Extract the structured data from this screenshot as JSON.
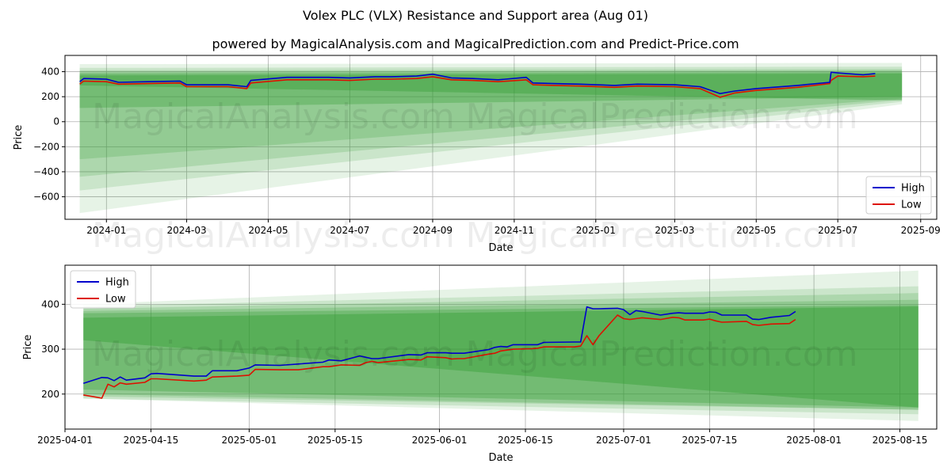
{
  "title": "Volex PLC (VLX) Resistance and Support area (Aug 01)",
  "subtitle": "powered by MagicalAnalysis.com and MagicalPrediction.com and Predict-Price.com",
  "watermark": [
    "MagicalAnalysis.com",
    "MagicalPrediction.com"
  ],
  "colors": {
    "high": "#0000cc",
    "low": "#dd1100",
    "band": "#2e9a2e",
    "grid": "#b0b0b0"
  },
  "chart_data": [
    {
      "type": "line",
      "xlabel": "Date",
      "ylabel": "Price",
      "xlim": [
        "2023-12-01",
        "2025-09-13"
      ],
      "ylim": [
        -780,
        530
      ],
      "yticks": [
        -600,
        -400,
        -200,
        0,
        200,
        400
      ],
      "ytick_labels": [
        "−600",
        "−400",
        "−200",
        "0",
        "200",
        "400"
      ],
      "xticks": [
        "2024-01-01",
        "2024-03-01",
        "2024-05-01",
        "2024-07-01",
        "2024-09-01",
        "2024-11-01",
        "2025-01-01",
        "2025-03-01",
        "2025-05-01",
        "2025-07-01",
        "2025-09-01"
      ],
      "xtick_labels": [
        "2024-01",
        "2024-03",
        "2024-05",
        "2024-07",
        "2024-09",
        "2024-11",
        "2025-01",
        "2025-03",
        "2025-05",
        "2025-07",
        "2025-09"
      ],
      "grid": true,
      "legend": "lower right",
      "bands": [
        {
          "x0": "2023-12-12",
          "x1": "2025-08-18",
          "top0": 460,
          "top1": 470,
          "bot0": -730,
          "bot1": 140,
          "opacity": 0.12
        },
        {
          "x0": "2023-12-12",
          "x1": "2025-08-18",
          "top0": 430,
          "top1": 440,
          "bot0": -550,
          "bot1": 160,
          "opacity": 0.15
        },
        {
          "x0": "2023-12-12",
          "x1": "2025-08-18",
          "top0": 410,
          "top1": 420,
          "bot0": -440,
          "bot1": 175,
          "opacity": 0.18
        },
        {
          "x0": "2023-12-12",
          "x1": "2025-08-18",
          "top0": 395,
          "top1": 410,
          "bot0": -300,
          "bot1": 185,
          "opacity": 0.2
        },
        {
          "x0": "2023-12-12",
          "x1": "2025-08-18",
          "top0": 385,
          "top1": 395,
          "bot0": 110,
          "bot1": 200,
          "opacity": 0.3
        },
        {
          "x0": "2023-12-12",
          "x1": "2025-08-18",
          "top0": 370,
          "top1": 385,
          "bot0": 290,
          "bot1": 170,
          "opacity": 0.35
        }
      ],
      "series": [
        {
          "name": "High",
          "x": [
            "2023-12-12",
            "2023-12-15",
            "2024-01-01",
            "2024-01-10",
            "2024-02-01",
            "2024-02-25",
            "2024-03-01",
            "2024-04-01",
            "2024-04-15",
            "2024-04-18",
            "2024-05-15",
            "2024-06-15",
            "2024-07-01",
            "2024-07-20",
            "2024-08-01",
            "2024-08-20",
            "2024-09-01",
            "2024-09-15",
            "2024-10-01",
            "2024-10-20",
            "2024-11-10",
            "2024-11-15",
            "2024-12-01",
            "2024-12-20",
            "2025-01-15",
            "2025-02-01",
            "2025-03-01",
            "2025-03-20",
            "2025-04-04",
            "2025-04-15",
            "2025-05-01",
            "2025-06-01",
            "2025-06-25",
            "2025-06-26",
            "2025-07-01",
            "2025-07-20",
            "2025-07-29"
          ],
          "values": [
            320,
            345,
            340,
            315,
            320,
            325,
            295,
            295,
            280,
            330,
            355,
            355,
            350,
            360,
            360,
            365,
            380,
            350,
            345,
            335,
            355,
            310,
            305,
            300,
            290,
            300,
            295,
            280,
            225,
            245,
            265,
            290,
            315,
            395,
            390,
            375,
            385
          ]
        },
        {
          "name": "Low",
          "x": [
            "2023-12-12",
            "2023-12-15",
            "2024-01-01",
            "2024-01-10",
            "2024-02-01",
            "2024-02-25",
            "2024-03-01",
            "2024-04-01",
            "2024-04-15",
            "2024-04-18",
            "2024-05-15",
            "2024-06-15",
            "2024-07-01",
            "2024-07-20",
            "2024-08-01",
            "2024-08-20",
            "2024-09-01",
            "2024-09-15",
            "2024-10-01",
            "2024-10-20",
            "2024-11-10",
            "2024-11-15",
            "2024-12-01",
            "2024-12-20",
            "2025-01-15",
            "2025-02-01",
            "2025-03-01",
            "2025-03-20",
            "2025-04-04",
            "2025-04-15",
            "2025-05-01",
            "2025-06-01",
            "2025-06-25",
            "2025-06-26",
            "2025-07-01",
            "2025-07-20",
            "2025-07-29"
          ],
          "values": [
            300,
            325,
            320,
            300,
            305,
            310,
            280,
            280,
            265,
            310,
            335,
            335,
            330,
            340,
            340,
            345,
            360,
            335,
            330,
            320,
            335,
            295,
            290,
            285,
            275,
            285,
            280,
            265,
            195,
            230,
            250,
            275,
            305,
            330,
            365,
            360,
            365
          ]
        }
      ]
    },
    {
      "type": "line",
      "xlabel": "Date",
      "ylabel": "Price",
      "xlim": [
        "2025-04-01",
        "2025-08-21"
      ],
      "ylim": [
        122,
        487
      ],
      "yticks": [
        200,
        300,
        400
      ],
      "ytick_labels": [
        "200",
        "300",
        "400"
      ],
      "xticks": [
        "2025-04-01",
        "2025-04-15",
        "2025-05-01",
        "2025-05-15",
        "2025-06-01",
        "2025-06-15",
        "2025-07-01",
        "2025-07-15",
        "2025-08-01",
        "2025-08-15"
      ],
      "xtick_labels": [
        "2025-04-01",
        "2025-04-15",
        "2025-05-01",
        "2025-05-15",
        "2025-06-01",
        "2025-06-15",
        "2025-07-01",
        "2025-07-15",
        "2025-08-01",
        "2025-08-15"
      ],
      "grid": true,
      "legend": "upper left",
      "bands": [
        {
          "x0": "2025-04-04",
          "x1": "2025-08-18",
          "top0": 400,
          "top1": 475,
          "bot0": 190,
          "bot1": 140,
          "opacity": 0.12
        },
        {
          "x0": "2025-04-04",
          "x1": "2025-08-18",
          "top0": 395,
          "top1": 440,
          "bot0": 190,
          "bot1": 155,
          "opacity": 0.15
        },
        {
          "x0": "2025-04-04",
          "x1": "2025-08-18",
          "top0": 390,
          "top1": 425,
          "bot0": 195,
          "bot1": 165,
          "opacity": 0.18
        },
        {
          "x0": "2025-04-04",
          "x1": "2025-08-18",
          "top0": 385,
          "top1": 410,
          "bot0": 200,
          "bot1": 165,
          "opacity": 0.22
        },
        {
          "x0": "2025-04-04",
          "x1": "2025-08-18",
          "top0": 380,
          "top1": 398,
          "bot0": 210,
          "bot1": 170,
          "opacity": 0.3
        },
        {
          "x0": "2025-04-04",
          "x1": "2025-08-18",
          "top0": 370,
          "top1": 395,
          "bot0": 320,
          "bot1": 170,
          "opacity": 0.38
        }
      ],
      "series": [
        {
          "name": "High",
          "x": [
            "2025-04-04",
            "2025-04-07",
            "2025-04-08",
            "2025-04-09",
            "2025-04-10",
            "2025-04-11",
            "2025-04-14",
            "2025-04-15",
            "2025-04-16",
            "2025-04-22",
            "2025-04-24",
            "2025-04-25",
            "2025-04-29",
            "2025-05-01",
            "2025-05-02",
            "2025-05-06",
            "2025-05-09",
            "2025-05-13",
            "2025-05-14",
            "2025-05-16",
            "2025-05-19",
            "2025-05-20",
            "2025-05-21",
            "2025-05-22",
            "2025-05-27",
            "2025-05-29",
            "2025-05-30",
            "2025-06-02",
            "2025-06-03",
            "2025-06-04",
            "2025-06-05",
            "2025-06-09",
            "2025-06-10",
            "2025-06-11",
            "2025-06-12",
            "2025-06-13",
            "2025-06-16",
            "2025-06-17",
            "2025-06-18",
            "2025-06-23",
            "2025-06-24",
            "2025-06-25",
            "2025-06-26",
            "2025-06-27",
            "2025-06-30",
            "2025-07-01",
            "2025-07-02",
            "2025-07-03",
            "2025-07-04",
            "2025-07-07",
            "2025-07-09",
            "2025-07-10",
            "2025-07-11",
            "2025-07-14",
            "2025-07-15",
            "2025-07-16",
            "2025-07-17",
            "2025-07-21",
            "2025-07-22",
            "2025-07-23",
            "2025-07-25",
            "2025-07-28",
            "2025-07-29"
          ],
          "values": [
            224,
            237,
            236,
            230,
            238,
            231,
            236,
            245,
            246,
            240,
            240,
            252,
            252,
            258,
            265,
            264,
            267,
            271,
            276,
            274,
            285,
            282,
            279,
            279,
            288,
            287,
            292,
            292,
            291,
            291,
            291,
            299,
            304,
            306,
            305,
            310,
            310,
            310,
            315,
            316,
            316,
            394,
            390,
            390,
            391,
            388,
            377,
            386,
            384,
            376,
            380,
            381,
            380,
            380,
            383,
            382,
            376,
            376,
            367,
            366,
            371,
            375,
            384
          ]
        },
        {
          "name": "Low",
          "x": [
            "2025-04-04",
            "2025-04-07",
            "2025-04-08",
            "2025-04-09",
            "2025-04-10",
            "2025-04-11",
            "2025-04-14",
            "2025-04-15",
            "2025-04-16",
            "2025-04-22",
            "2025-04-24",
            "2025-04-25",
            "2025-04-29",
            "2025-05-01",
            "2025-05-02",
            "2025-05-06",
            "2025-05-09",
            "2025-05-13",
            "2025-05-14",
            "2025-05-16",
            "2025-05-19",
            "2025-05-20",
            "2025-05-21",
            "2025-05-22",
            "2025-05-27",
            "2025-05-29",
            "2025-05-30",
            "2025-06-02",
            "2025-06-03",
            "2025-06-04",
            "2025-06-05",
            "2025-06-09",
            "2025-06-10",
            "2025-06-11",
            "2025-06-12",
            "2025-06-13",
            "2025-06-16",
            "2025-06-17",
            "2025-06-18",
            "2025-06-23",
            "2025-06-24",
            "2025-06-25",
            "2025-06-26",
            "2025-06-27",
            "2025-06-30",
            "2025-07-01",
            "2025-07-02",
            "2025-07-03",
            "2025-07-04",
            "2025-07-07",
            "2025-07-09",
            "2025-07-10",
            "2025-07-11",
            "2025-07-14",
            "2025-07-15",
            "2025-07-16",
            "2025-07-17",
            "2025-07-21",
            "2025-07-22",
            "2025-07-23",
            "2025-07-25",
            "2025-07-28",
            "2025-07-29"
          ],
          "values": [
            198,
            191,
            222,
            216,
            225,
            222,
            226,
            234,
            234,
            229,
            231,
            238,
            240,
            242,
            255,
            254,
            254,
            261,
            261,
            265,
            264,
            270,
            273,
            270,
            277,
            276,
            283,
            281,
            278,
            279,
            279,
            289,
            291,
            296,
            298,
            300,
            301,
            302,
            305,
            305,
            307,
            330,
            310,
            330,
            376,
            368,
            366,
            368,
            370,
            366,
            371,
            370,
            365,
            365,
            367,
            363,
            360,
            362,
            355,
            353,
            356,
            357,
            366
          ]
        }
      ]
    }
  ]
}
